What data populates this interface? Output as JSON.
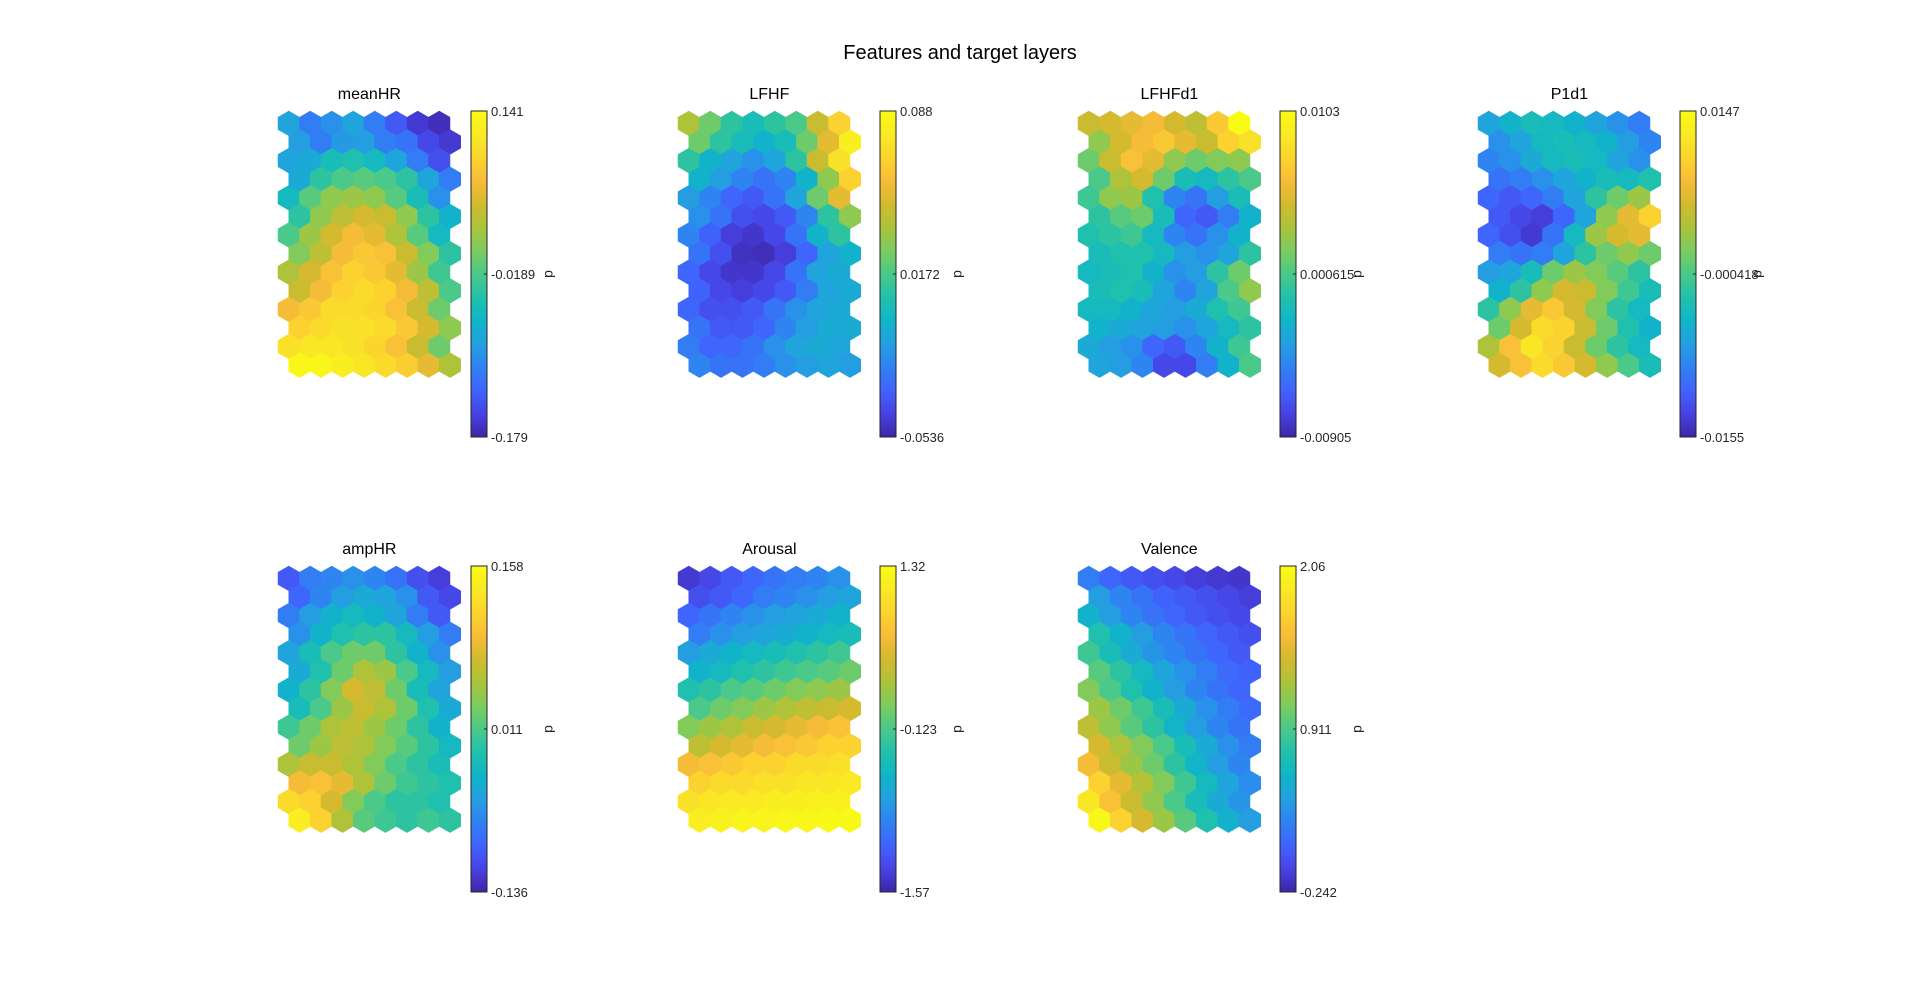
{
  "figure": {
    "title": "Features and target layers"
  },
  "colormap": [
    "#3e26a8",
    "#4743e4",
    "#4063fd",
    "#2f82f2",
    "#23a0e0",
    "#10b5c8",
    "#21c1ab",
    "#4ac98a",
    "#7ccc5e",
    "#abc43b",
    "#d2ba2f",
    "#f8bc39",
    "#fbd42e",
    "#f9ea25",
    "#f9fb15"
  ],
  "chart_data": [
    {
      "type": "heatmap",
      "title": "meanHR",
      "colorbar_label": "d",
      "colorbar_ticks": [
        "0.141",
        "-0.0189",
        "-0.179"
      ],
      "range": [
        -0.179,
        0.141
      ],
      "grid_rows": 14,
      "grid_cols": 8,
      "values": [
        [
          0.3,
          0.2,
          0.25,
          0.3,
          0.2,
          0.12,
          0.05,
          0.02
        ],
        [
          0.28,
          0.2,
          0.27,
          0.28,
          0.2,
          0.18,
          0.08,
          0.05
        ],
        [
          0.3,
          0.32,
          0.4,
          0.42,
          0.38,
          0.3,
          0.2,
          0.1
        ],
        [
          0.32,
          0.45,
          0.5,
          0.52,
          0.5,
          0.45,
          0.3,
          0.2
        ],
        [
          0.38,
          0.52,
          0.6,
          0.62,
          0.6,
          0.52,
          0.4,
          0.25
        ],
        [
          0.45,
          0.6,
          0.68,
          0.72,
          0.7,
          0.6,
          0.45,
          0.35
        ],
        [
          0.5,
          0.62,
          0.72,
          0.78,
          0.75,
          0.65,
          0.52,
          0.38
        ],
        [
          0.58,
          0.68,
          0.78,
          0.82,
          0.8,
          0.7,
          0.58,
          0.45
        ],
        [
          0.65,
          0.72,
          0.8,
          0.85,
          0.82,
          0.75,
          0.62,
          0.48
        ],
        [
          0.7,
          0.78,
          0.85,
          0.88,
          0.85,
          0.78,
          0.68,
          0.5
        ],
        [
          0.78,
          0.82,
          0.88,
          0.88,
          0.86,
          0.8,
          0.7,
          0.55
        ],
        [
          0.85,
          0.88,
          0.9,
          0.9,
          0.88,
          0.82,
          0.72,
          0.6
        ],
        [
          0.9,
          0.92,
          0.92,
          0.9,
          0.86,
          0.8,
          0.7,
          0.55
        ],
        [
          0.98,
          0.98,
          0.95,
          0.92,
          0.88,
          0.84,
          0.75,
          0.65
        ]
      ]
    },
    {
      "type": "heatmap",
      "title": "LFHF",
      "colorbar_label": "d",
      "colorbar_ticks": [
        "0.088",
        "0.0172",
        "-0.0536"
      ],
      "range": [
        -0.0536,
        0.088
      ],
      "grid_rows": 14,
      "grid_cols": 8,
      "values": [
        [
          0.65,
          0.55,
          0.45,
          0.4,
          0.45,
          0.5,
          0.7,
          0.85
        ],
        [
          0.55,
          0.45,
          0.4,
          0.35,
          0.4,
          0.55,
          0.75,
          0.95
        ],
        [
          0.45,
          0.35,
          0.3,
          0.25,
          0.3,
          0.45,
          0.7,
          0.9
        ],
        [
          0.35,
          0.28,
          0.22,
          0.18,
          0.22,
          0.35,
          0.6,
          0.85
        ],
        [
          0.28,
          0.22,
          0.15,
          0.12,
          0.18,
          0.3,
          0.55,
          0.75
        ],
        [
          0.25,
          0.18,
          0.1,
          0.08,
          0.12,
          0.22,
          0.45,
          0.6
        ],
        [
          0.22,
          0.14,
          0.06,
          0.04,
          0.08,
          0.18,
          0.35,
          0.45
        ],
        [
          0.18,
          0.1,
          0.03,
          0.02,
          0.06,
          0.15,
          0.3,
          0.35
        ],
        [
          0.15,
          0.08,
          0.04,
          0.04,
          0.08,
          0.18,
          0.3,
          0.32
        ],
        [
          0.14,
          0.08,
          0.06,
          0.08,
          0.12,
          0.2,
          0.3,
          0.32
        ],
        [
          0.15,
          0.1,
          0.1,
          0.12,
          0.18,
          0.25,
          0.3,
          0.32
        ],
        [
          0.18,
          0.12,
          0.12,
          0.15,
          0.22,
          0.28,
          0.32,
          0.32
        ],
        [
          0.2,
          0.15,
          0.15,
          0.18,
          0.25,
          0.3,
          0.32,
          0.3
        ],
        [
          0.22,
          0.18,
          0.18,
          0.2,
          0.25,
          0.28,
          0.3,
          0.28
        ]
      ]
    },
    {
      "type": "heatmap",
      "title": "LFHFd1",
      "colorbar_label": "d",
      "colorbar_ticks": [
        "0.0103",
        "0.000615",
        "-0.00905"
      ],
      "range": [
        -0.00905,
        0.0103
      ],
      "grid_rows": 14,
      "grid_cols": 8,
      "values": [
        [
          0.7,
          0.72,
          0.75,
          0.78,
          0.72,
          0.68,
          0.82,
          1.0
        ],
        [
          0.6,
          0.72,
          0.78,
          0.82,
          0.75,
          0.7,
          0.85,
          0.9
        ],
        [
          0.55,
          0.7,
          0.8,
          0.75,
          0.6,
          0.55,
          0.58,
          0.6
        ],
        [
          0.5,
          0.65,
          0.72,
          0.55,
          0.4,
          0.38,
          0.45,
          0.5
        ],
        [
          0.48,
          0.6,
          0.62,
          0.42,
          0.22,
          0.18,
          0.28,
          0.4
        ],
        [
          0.45,
          0.52,
          0.55,
          0.4,
          0.15,
          0.12,
          0.2,
          0.35
        ],
        [
          0.42,
          0.45,
          0.48,
          0.38,
          0.22,
          0.18,
          0.25,
          0.35
        ],
        [
          0.4,
          0.42,
          0.42,
          0.38,
          0.28,
          0.25,
          0.3,
          0.45
        ],
        [
          0.38,
          0.4,
          0.42,
          0.35,
          0.25,
          0.28,
          0.45,
          0.55
        ],
        [
          0.4,
          0.42,
          0.4,
          0.3,
          0.22,
          0.3,
          0.5,
          0.6
        ],
        [
          0.38,
          0.38,
          0.35,
          0.3,
          0.28,
          0.32,
          0.42,
          0.48
        ],
        [
          0.35,
          0.32,
          0.3,
          0.28,
          0.25,
          0.3,
          0.38,
          0.45
        ],
        [
          0.32,
          0.28,
          0.25,
          0.15,
          0.12,
          0.22,
          0.35,
          0.48
        ],
        [
          0.3,
          0.28,
          0.22,
          0.08,
          0.08,
          0.2,
          0.35,
          0.5
        ]
      ]
    },
    {
      "type": "heatmap",
      "title": "P1d1",
      "colorbar_label": "d",
      "colorbar_ticks": [
        "0.0147",
        "-0.000418",
        "-0.0155"
      ],
      "range": [
        -0.0155,
        0.0147
      ],
      "grid_rows": 14,
      "grid_cols": 8,
      "values": [
        [
          0.3,
          0.35,
          0.4,
          0.38,
          0.35,
          0.3,
          0.25,
          0.2
        ],
        [
          0.25,
          0.3,
          0.38,
          0.4,
          0.38,
          0.35,
          0.28,
          0.22
        ],
        [
          0.22,
          0.25,
          0.32,
          0.38,
          0.4,
          0.38,
          0.3,
          0.25
        ],
        [
          0.18,
          0.2,
          0.25,
          0.3,
          0.35,
          0.4,
          0.38,
          0.42
        ],
        [
          0.15,
          0.12,
          0.15,
          0.2,
          0.3,
          0.45,
          0.55,
          0.62
        ],
        [
          0.12,
          0.08,
          0.06,
          0.15,
          0.3,
          0.6,
          0.75,
          0.85
        ],
        [
          0.15,
          0.1,
          0.05,
          0.18,
          0.38,
          0.62,
          0.72,
          0.75
        ],
        [
          0.2,
          0.18,
          0.2,
          0.3,
          0.45,
          0.55,
          0.6,
          0.55
        ],
        [
          0.28,
          0.3,
          0.4,
          0.55,
          0.62,
          0.58,
          0.52,
          0.45
        ],
        [
          0.35,
          0.45,
          0.6,
          0.72,
          0.7,
          0.58,
          0.48,
          0.4
        ],
        [
          0.45,
          0.6,
          0.75,
          0.82,
          0.72,
          0.58,
          0.45,
          0.38
        ],
        [
          0.55,
          0.72,
          0.88,
          0.85,
          0.7,
          0.55,
          0.42,
          0.35
        ],
        [
          0.65,
          0.8,
          0.92,
          0.85,
          0.7,
          0.55,
          0.45,
          0.38
        ],
        [
          0.72,
          0.8,
          0.88,
          0.82,
          0.72,
          0.6,
          0.5,
          0.4
        ]
      ]
    },
    {
      "type": "heatmap",
      "title": "ampHR",
      "colorbar_label": "d",
      "colorbar_ticks": [
        "0.158",
        "0.011",
        "-0.136"
      ],
      "range": [
        -0.136,
        0.158
      ],
      "grid_rows": 14,
      "grid_cols": 8,
      "values": [
        [
          0.12,
          0.2,
          0.22,
          0.25,
          0.22,
          0.18,
          0.1,
          0.06
        ],
        [
          0.15,
          0.22,
          0.28,
          0.32,
          0.3,
          0.25,
          0.12,
          0.08
        ],
        [
          0.2,
          0.28,
          0.35,
          0.38,
          0.35,
          0.3,
          0.2,
          0.12
        ],
        [
          0.25,
          0.35,
          0.42,
          0.45,
          0.45,
          0.38,
          0.28,
          0.2
        ],
        [
          0.3,
          0.4,
          0.5,
          0.55,
          0.55,
          0.45,
          0.35,
          0.25
        ],
        [
          0.32,
          0.42,
          0.55,
          0.65,
          0.62,
          0.5,
          0.38,
          0.28
        ],
        [
          0.35,
          0.45,
          0.58,
          0.72,
          0.68,
          0.55,
          0.4,
          0.3
        ],
        [
          0.4,
          0.5,
          0.62,
          0.7,
          0.65,
          0.55,
          0.42,
          0.32
        ],
        [
          0.48,
          0.55,
          0.65,
          0.68,
          0.62,
          0.55,
          0.45,
          0.35
        ],
        [
          0.55,
          0.62,
          0.68,
          0.65,
          0.58,
          0.52,
          0.45,
          0.38
        ],
        [
          0.65,
          0.7,
          0.7,
          0.65,
          0.58,
          0.5,
          0.45,
          0.4
        ],
        [
          0.78,
          0.8,
          0.75,
          0.65,
          0.55,
          0.48,
          0.45,
          0.42
        ],
        [
          0.88,
          0.85,
          0.72,
          0.58,
          0.5,
          0.45,
          0.45,
          0.42
        ],
        [
          0.95,
          0.85,
          0.65,
          0.52,
          0.48,
          0.45,
          0.48,
          0.45
        ]
      ]
    },
    {
      "type": "heatmap",
      "title": "Arousal",
      "colorbar_label": "d",
      "colorbar_ticks": [
        "1.32",
        "-0.123",
        "-1.57"
      ],
      "range": [
        -1.57,
        1.32
      ],
      "grid_rows": 14,
      "grid_cols": 8,
      "values": [
        [
          0.05,
          0.08,
          0.12,
          0.15,
          0.18,
          0.2,
          0.22,
          0.25
        ],
        [
          0.1,
          0.12,
          0.15,
          0.2,
          0.22,
          0.25,
          0.28,
          0.3
        ],
        [
          0.15,
          0.18,
          0.22,
          0.25,
          0.28,
          0.3,
          0.32,
          0.35
        ],
        [
          0.2,
          0.25,
          0.28,
          0.3,
          0.32,
          0.35,
          0.38,
          0.4
        ],
        [
          0.28,
          0.32,
          0.35,
          0.38,
          0.4,
          0.42,
          0.45,
          0.48
        ],
        [
          0.35,
          0.38,
          0.42,
          0.45,
          0.48,
          0.5,
          0.52,
          0.55
        ],
        [
          0.42,
          0.45,
          0.5,
          0.52,
          0.55,
          0.58,
          0.6,
          0.62
        ],
        [
          0.5,
          0.55,
          0.58,
          0.62,
          0.65,
          0.68,
          0.7,
          0.72
        ],
        [
          0.58,
          0.62,
          0.65,
          0.7,
          0.72,
          0.75,
          0.78,
          0.8
        ],
        [
          0.68,
          0.72,
          0.75,
          0.78,
          0.8,
          0.82,
          0.85,
          0.85
        ],
        [
          0.78,
          0.8,
          0.82,
          0.85,
          0.85,
          0.88,
          0.88,
          0.9
        ],
        [
          0.85,
          0.88,
          0.88,
          0.9,
          0.9,
          0.92,
          0.92,
          0.93
        ],
        [
          0.9,
          0.92,
          0.93,
          0.93,
          0.95,
          0.95,
          0.96,
          0.96
        ],
        [
          0.95,
          0.96,
          0.97,
          0.97,
          0.98,
          0.98,
          0.99,
          0.99
        ]
      ]
    },
    {
      "type": "heatmap",
      "title": "Valence",
      "colorbar_label": "d",
      "colorbar_ticks": [
        "2.06",
        "0.911",
        "-0.242"
      ],
      "range": [
        -0.242,
        2.06
      ],
      "grid_rows": 14,
      "grid_cols": 8,
      "values": [
        [
          0.2,
          0.15,
          0.12,
          0.1,
          0.08,
          0.06,
          0.05,
          0.04
        ],
        [
          0.28,
          0.22,
          0.18,
          0.14,
          0.12,
          0.1,
          0.08,
          0.06
        ],
        [
          0.35,
          0.28,
          0.22,
          0.18,
          0.15,
          0.12,
          0.1,
          0.08
        ],
        [
          0.42,
          0.35,
          0.28,
          0.22,
          0.18,
          0.15,
          0.12,
          0.1
        ],
        [
          0.48,
          0.4,
          0.32,
          0.26,
          0.22,
          0.18,
          0.15,
          0.12
        ],
        [
          0.52,
          0.45,
          0.38,
          0.3,
          0.25,
          0.2,
          0.16,
          0.14
        ],
        [
          0.58,
          0.5,
          0.42,
          0.35,
          0.28,
          0.22,
          0.18,
          0.15
        ],
        [
          0.62,
          0.55,
          0.48,
          0.4,
          0.32,
          0.25,
          0.2,
          0.16
        ],
        [
          0.68,
          0.6,
          0.52,
          0.45,
          0.36,
          0.28,
          0.22,
          0.18
        ],
        [
          0.72,
          0.65,
          0.58,
          0.5,
          0.4,
          0.32,
          0.25,
          0.2
        ],
        [
          0.78,
          0.7,
          0.62,
          0.55,
          0.45,
          0.36,
          0.28,
          0.22
        ],
        [
          0.85,
          0.75,
          0.66,
          0.58,
          0.48,
          0.38,
          0.3,
          0.24
        ],
        [
          0.92,
          0.8,
          0.7,
          0.6,
          0.5,
          0.4,
          0.32,
          0.26
        ],
        [
          0.98,
          0.85,
          0.72,
          0.62,
          0.52,
          0.42,
          0.34,
          0.28
        ]
      ]
    }
  ]
}
